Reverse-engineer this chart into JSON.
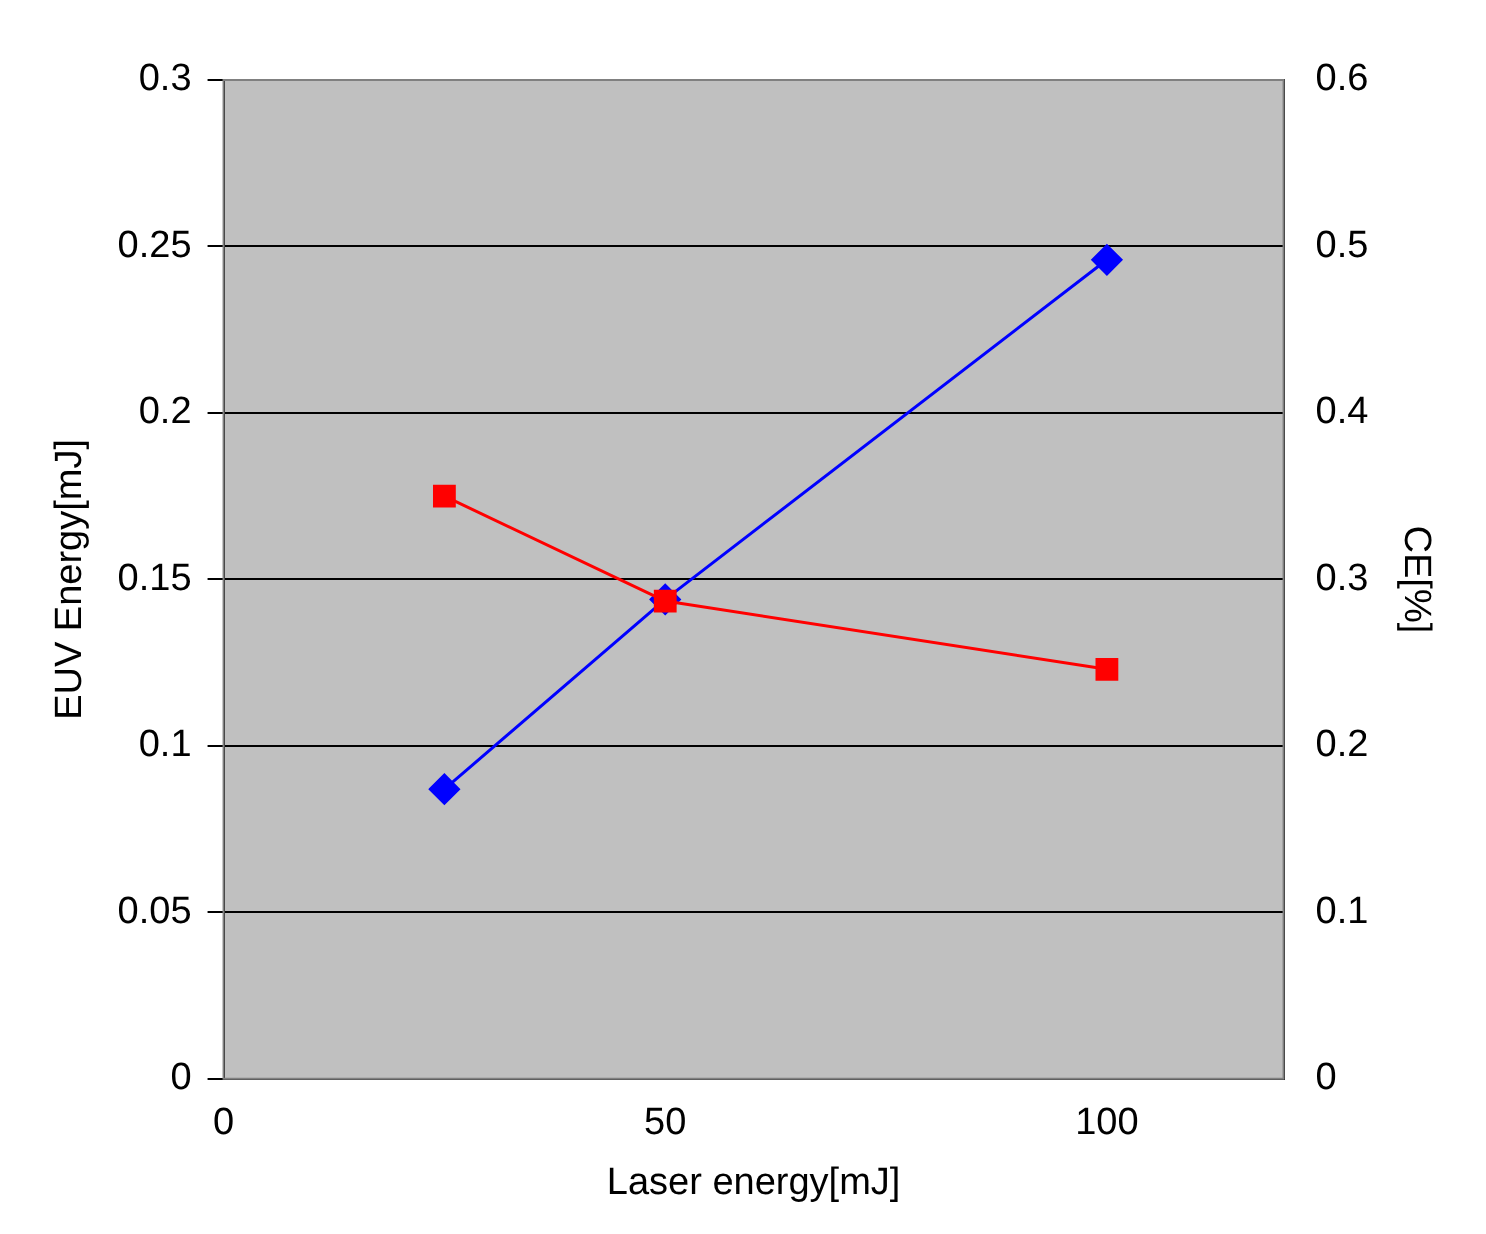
{
  "chart_data": {
    "type": "line",
    "xlabel": "Laser energy[mJ]",
    "ylabel": "EUV Energy[mJ]",
    "y2label": "CE[%]",
    "x": [
      25,
      50,
      100
    ],
    "series": [
      {
        "color": "#0000ff",
        "values": [
          0.087,
          0.144,
          0.246
        ],
        "marker": "diamond"
      },
      {
        "color": "#ff0000",
        "values": [
          0.35,
          0.287,
          0.246
        ],
        "marker": "square",
        "axis": "y2"
      }
    ],
    "xlim": [
      0,
      120
    ],
    "xticks": [
      0,
      50,
      100
    ],
    "ylim": [
      0,
      0.3
    ],
    "yticks": [
      0,
      0.05,
      0.1,
      0.15,
      0.2,
      0.25,
      0.3
    ],
    "y2lim": [
      0,
      0.6
    ],
    "y2ticks": [
      0,
      0.1,
      0.2,
      0.3,
      0.4,
      0.5,
      0.6
    ],
    "grid": "y",
    "legend": false,
    "line_style": "solid"
  }
}
